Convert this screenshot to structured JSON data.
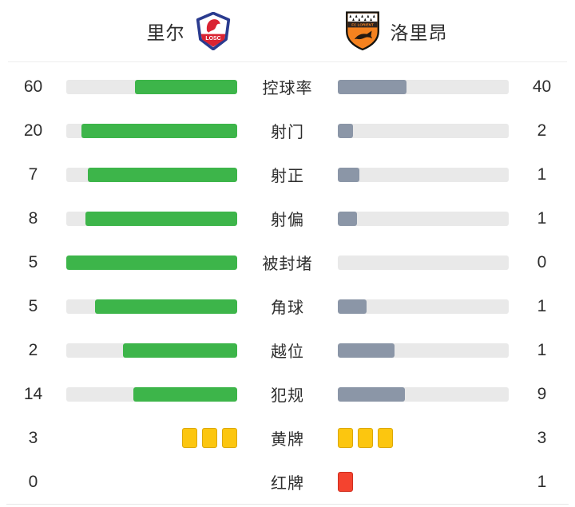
{
  "header": {
    "home_team": {
      "name": "里尔",
      "logo": "losc-crest"
    },
    "away_team": {
      "name": "洛里昂",
      "logo": "fc-lorient-crest"
    }
  },
  "colors": {
    "home_bar": "#3db54a",
    "away_bar": "#8b96a7",
    "bar_track": "#e9e9e9",
    "yellow_card": "#fcc60f",
    "yellow_card_border": "#dca805",
    "red_card": "#f4432f",
    "red_card_border": "#d02f1f",
    "text": "#2e2e2e"
  },
  "stats": [
    {
      "label": "控球率",
      "home": 60,
      "away": 40,
      "type": "bar"
    },
    {
      "label": "射门",
      "home": 20,
      "away": 2,
      "type": "bar"
    },
    {
      "label": "射正",
      "home": 7,
      "away": 1,
      "type": "bar"
    },
    {
      "label": "射偏",
      "home": 8,
      "away": 1,
      "type": "bar"
    },
    {
      "label": "被封堵",
      "home": 5,
      "away": 0,
      "type": "bar"
    },
    {
      "label": "角球",
      "home": 5,
      "away": 1,
      "type": "bar"
    },
    {
      "label": "越位",
      "home": 2,
      "away": 1,
      "type": "bar"
    },
    {
      "label": "犯规",
      "home": 14,
      "away": 9,
      "type": "bar"
    },
    {
      "label": "黄牌",
      "home": 3,
      "away": 3,
      "type": "cards",
      "card": "yellow"
    },
    {
      "label": "红牌",
      "home": 0,
      "away": 1,
      "type": "cards",
      "card": "red"
    }
  ]
}
